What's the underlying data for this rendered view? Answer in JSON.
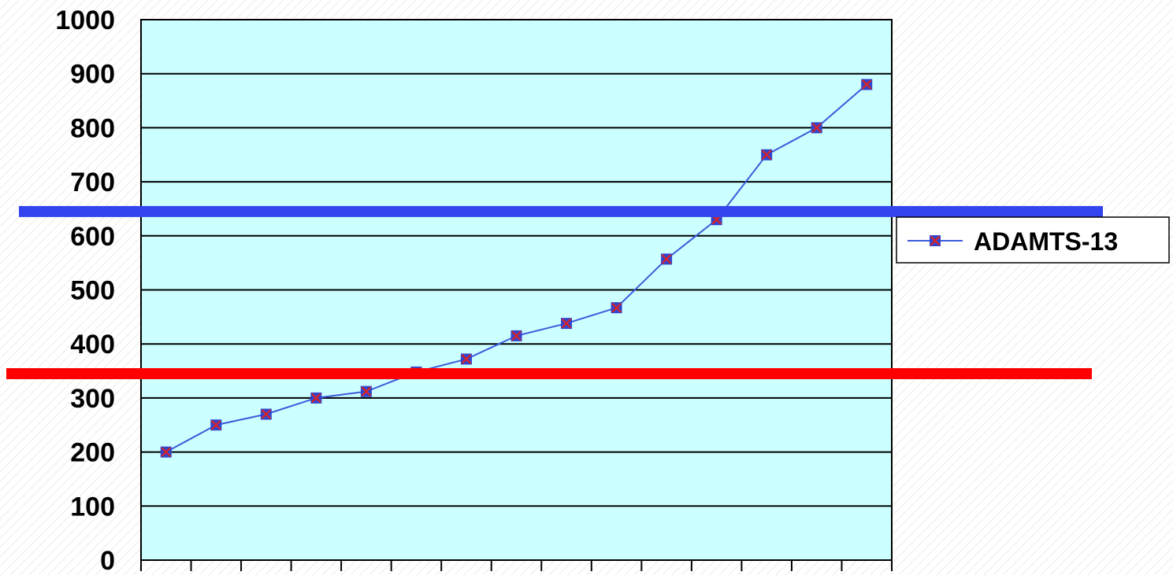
{
  "chart_data": {
    "type": "line",
    "title": "",
    "xlabel": "",
    "ylabel": "",
    "ylim": [
      0,
      1000
    ],
    "yticks": [
      "0",
      "100",
      "200",
      "300",
      "400",
      "500",
      "600",
      "700",
      "800",
      "900",
      "1000"
    ],
    "grid": "horizontal",
    "legend": "right",
    "series": [
      {
        "name": "ADAMTS-13",
        "color": "#3b5bdb",
        "marker_fill": "#3344cc",
        "marker_x": "#dd2222",
        "values": [
          200,
          250,
          270,
          300,
          312,
          348,
          372,
          415,
          438,
          467,
          557,
          630,
          750,
          800,
          880
        ]
      }
    ],
    "reference_lines": [
      {
        "value": 645,
        "color": "#3344ee"
      },
      {
        "value": 345,
        "color": "#ff0000"
      }
    ],
    "plot_background": "#ccffff"
  }
}
